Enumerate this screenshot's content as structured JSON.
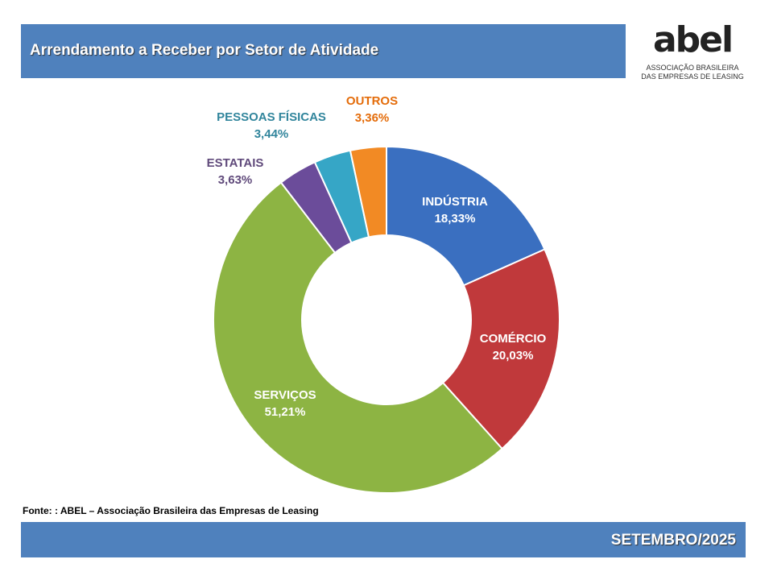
{
  "header": {
    "title": "Arrendamento a Receber por Setor de Atividade"
  },
  "logo": {
    "mark": "abel",
    "line1": "ASSOCIAÇÃO BRASILEIRA",
    "line2": "DAS EMPRESAS DE LEASING"
  },
  "source": "Fonte: : ABEL – Associação Brasileira das Empresas de Leasing",
  "footer": {
    "period": "SETEMBRO/2025"
  },
  "chart_data": {
    "type": "pie",
    "variant": "donut",
    "title": "Arrendamento a Receber por Setor de Atividade",
    "categories": [
      "INDÚSTRIA",
      "COMÉRCIO",
      "SERVIÇOS",
      "ESTATAIS",
      "PESSOAS FÍSICAS",
      "OUTROS"
    ],
    "values": [
      18.33,
      20.03,
      51.21,
      3.63,
      3.44,
      3.36
    ],
    "value_labels": [
      "18,33%",
      "20,03%",
      "51,21%",
      "3,63%",
      "3,44%",
      "3,36%"
    ],
    "colors": [
      "#3a6fc0",
      "#c0393b",
      "#8db443",
      "#6b4c9a",
      "#36a6c6",
      "#f28a24"
    ],
    "label_colors": [
      "#ffffff",
      "#ffffff",
      "#ffffff",
      "#604a7b",
      "#31859c",
      "#e46c0a"
    ]
  }
}
